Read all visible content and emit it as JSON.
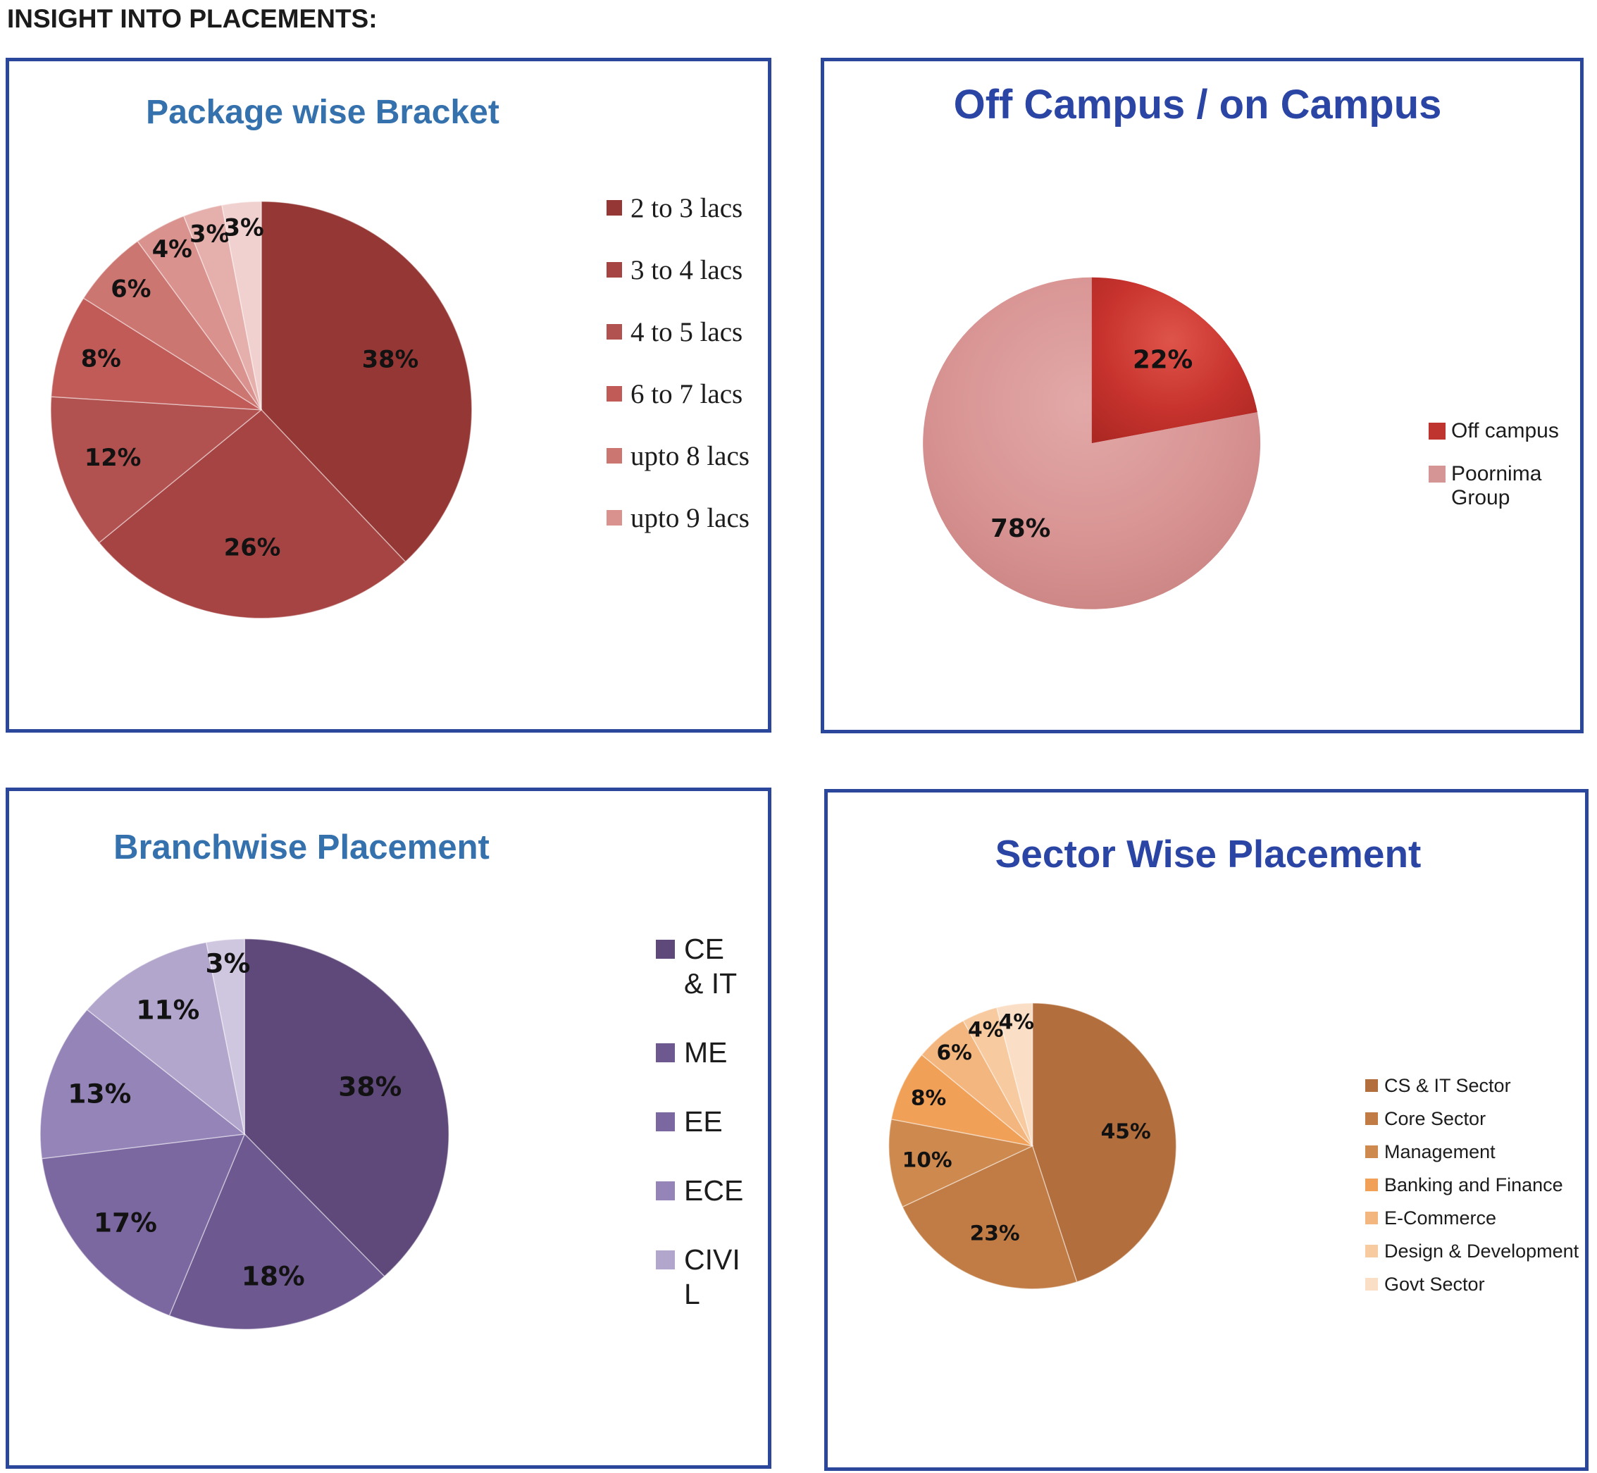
{
  "page": {
    "title": "INSIGHT INTO PLACEMENTS:"
  },
  "chart_data": [
    {
      "type": "pie",
      "title": "Package wise Bracket",
      "title_color": "#3571AC",
      "legend_position": "right",
      "start_angle_deg": 0,
      "direction": "clockwise",
      "categories": [
        "2 to 3 lacs",
        "3 to 4 lacs",
        "4 to 5 lacs",
        "6 to 7 lacs",
        "upto 8 lacs",
        "upto 9 lacs",
        "",
        ""
      ],
      "values": [
        38,
        26,
        12,
        8,
        6,
        4,
        3,
        3
      ],
      "slices": [
        {
          "label": "2 to 3 lacs",
          "pct": 38,
          "color": "#953734"
        },
        {
          "label": "3 to 4 lacs",
          "pct": 26,
          "color": "#A64443"
        },
        {
          "label": "4 to 5 lacs",
          "pct": 12,
          "color": "#B25250"
        },
        {
          "label": "6 to 7 lacs",
          "pct": 8,
          "color": "#C05B58"
        },
        {
          "label": "upto 8 lacs",
          "pct": 6,
          "color": "#CC7672"
        },
        {
          "label": "upto 9 lacs",
          "pct": 4,
          "color": "#D9928E"
        },
        {
          "label": "",
          "pct": 3,
          "color": "#E5AFAC"
        },
        {
          "label": "",
          "pct": 3,
          "color": "#F1D1D0"
        }
      ],
      "legend": [
        {
          "label": "2 to 3 lacs",
          "color": "#953734"
        },
        {
          "label": "3 to 4 lacs",
          "color": "#A64443"
        },
        {
          "label": "4 to 5 lacs",
          "color": "#B25250"
        },
        {
          "label": "6 to 7 lacs",
          "color": "#C05B58"
        },
        {
          "label": "upto 8 lacs",
          "color": "#CC7672"
        },
        {
          "label": "upto 9 lacs",
          "color": "#D9928E"
        }
      ]
    },
    {
      "type": "pie",
      "title": "Off Campus / on Campus",
      "title_color": "#2B45A4",
      "legend_position": "right",
      "start_angle_deg": 0,
      "direction": "clockwise",
      "categories": [
        "Off campus",
        "Poornima Group"
      ],
      "values": [
        22,
        78
      ],
      "slices": [
        {
          "label": "Off campus",
          "pct": 22,
          "color": "#C8332E",
          "gradient": {
            "inner": "#DE544A",
            "outer": "#AC2823"
          }
        },
        {
          "label": "Poornima Group",
          "pct": 78,
          "color": "#D89493",
          "gradient": {
            "inner": "#E2A9A8",
            "outer": "#C67F7E"
          }
        }
      ],
      "legend": [
        {
          "label": "Off campus",
          "color": "#C0342F"
        },
        {
          "label": "Poornima Group",
          "color": "#D59594"
        }
      ]
    },
    {
      "type": "pie",
      "title": "Branchwise Placement",
      "title_color": "#3571AC",
      "legend_position": "right",
      "start_angle_deg": 0,
      "direction": "clockwise",
      "categories": [
        "CE & IT",
        "ME",
        "EE",
        "ECE",
        "CIVIL",
        ""
      ],
      "values": [
        38,
        18,
        17,
        13,
        11,
        3
      ],
      "slices": [
        {
          "label": "CE & IT",
          "pct": 38,
          "color": "#5F497A"
        },
        {
          "label": "ME",
          "pct": 18,
          "color": "#6D5890"
        },
        {
          "label": "EE",
          "pct": 17,
          "color": "#7C68A0"
        },
        {
          "label": "ECE",
          "pct": 13,
          "color": "#9484B8"
        },
        {
          "label": "CIVIL",
          "pct": 11,
          "color": "#B3A6CC"
        },
        {
          "label": "",
          "pct": 3,
          "color": "#CFC6DF"
        }
      ],
      "legend": [
        {
          "label": "CE & IT",
          "lines": [
            "CE",
            "& IT"
          ],
          "color": "#5F497A"
        },
        {
          "label": "ME",
          "lines": [
            "ME"
          ],
          "color": "#6D5890"
        },
        {
          "label": "EE",
          "lines": [
            "EE"
          ],
          "color": "#7C68A0"
        },
        {
          "label": "ECE",
          "lines": [
            "ECE"
          ],
          "color": "#9484B8"
        },
        {
          "label": "CIVIL",
          "lines": [
            "CIVI",
            "L"
          ],
          "color": "#B3A6CC"
        }
      ]
    },
    {
      "type": "pie",
      "title": "Sector Wise Placement",
      "title_color": "#2B45A4",
      "legend_position": "right",
      "start_angle_deg": 0,
      "direction": "clockwise",
      "categories": [
        "CS & IT Sector",
        "Core Sector",
        "Management",
        "Banking and Finance",
        "E-Commerce",
        "Design & Development",
        "Govt Sector"
      ],
      "values": [
        45,
        23,
        10,
        8,
        6,
        4,
        4
      ],
      "slices": [
        {
          "label": "CS & IT Sector",
          "pct": 45,
          "color": "#B26E3C"
        },
        {
          "label": "Core Sector",
          "pct": 23,
          "color": "#C07C44"
        },
        {
          "label": "Management",
          "pct": 10,
          "color": "#CE8A4E"
        },
        {
          "label": "Banking and Finance",
          "pct": 8,
          "color": "#F0A057"
        },
        {
          "label": "E-Commerce",
          "pct": 6,
          "color": "#F4B67F"
        },
        {
          "label": "Design & Development",
          "pct": 4,
          "color": "#F7CA9F"
        },
        {
          "label": "Govt Sector",
          "pct": 4,
          "color": "#FBDEC6"
        }
      ],
      "legend": [
        {
          "label": "CS & IT Sector",
          "color": "#B26E3C"
        },
        {
          "label": "Core Sector",
          "color": "#C07C44"
        },
        {
          "label": "Management",
          "color": "#CE8A4E"
        },
        {
          "label": "Banking and Finance",
          "color": "#F0A057"
        },
        {
          "label": "E-Commerce",
          "color": "#F4B67F"
        },
        {
          "label": "Design & Development",
          "color": "#F7CA9F"
        },
        {
          "label": "Govt Sector",
          "color": "#FBDEC6"
        }
      ]
    }
  ]
}
